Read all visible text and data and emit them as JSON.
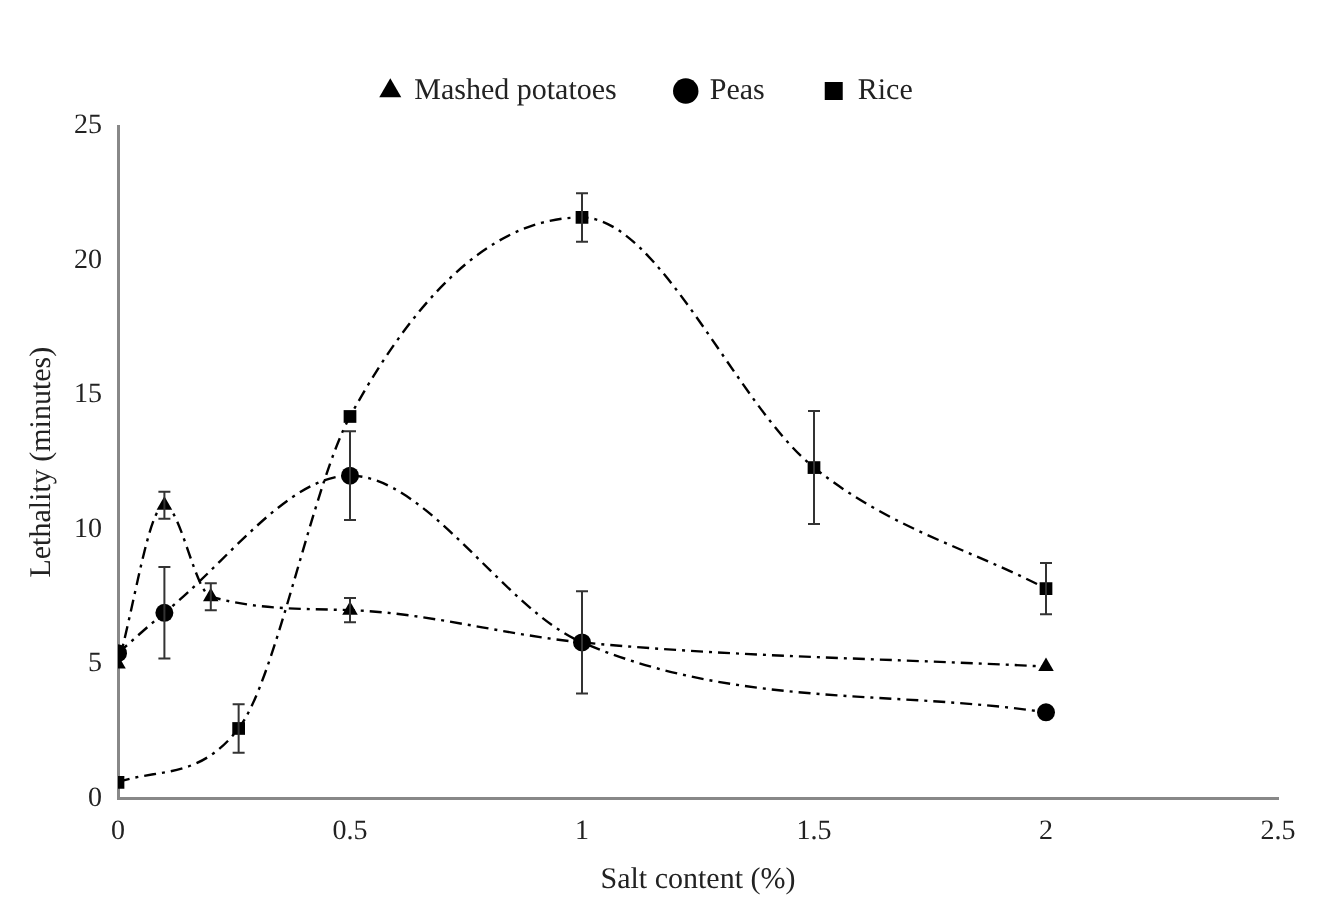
{
  "chart_data": {
    "type": "line",
    "xlabel": "Salt content (%)",
    "ylabel": "Lethality (minutes)",
    "xlim": [
      0,
      2.5
    ],
    "xticks": [
      0,
      0.5,
      1,
      1.5,
      2,
      2.5
    ],
    "ylim": [
      0,
      25
    ],
    "yticks": [
      0,
      5,
      10,
      15,
      20,
      25
    ],
    "grid": false,
    "legend": "top",
    "line_style": "dashed",
    "series": [
      {
        "name": "Mashed potatoes",
        "color": "#000000",
        "marker": "triangle",
        "x": [
          0,
          0.1,
          0.2,
          0.5,
          1,
          2
        ],
        "values": [
          5.0,
          10.9,
          7.5,
          7.0,
          5.8,
          4.9
        ],
        "errors": [
          null,
          0.5,
          0.5,
          0.45,
          null,
          null
        ]
      },
      {
        "name": "Peas",
        "color": "#000000",
        "marker": "circle",
        "x": [
          0,
          0.1,
          0.5,
          1,
          2
        ],
        "values": [
          5.4,
          6.9,
          12.0,
          5.8,
          3.2
        ],
        "errors": [
          null,
          1.7,
          1.65,
          1.9,
          null
        ]
      },
      {
        "name": "Rice",
        "color": "#000000",
        "marker": "square",
        "x": [
          0,
          0.26,
          0.5,
          1,
          1.5,
          2
        ],
        "values": [
          0.6,
          2.6,
          14.2,
          21.6,
          12.3,
          7.8
        ],
        "errors": [
          null,
          0.9,
          null,
          0.9,
          2.1,
          0.95
        ]
      }
    ]
  }
}
